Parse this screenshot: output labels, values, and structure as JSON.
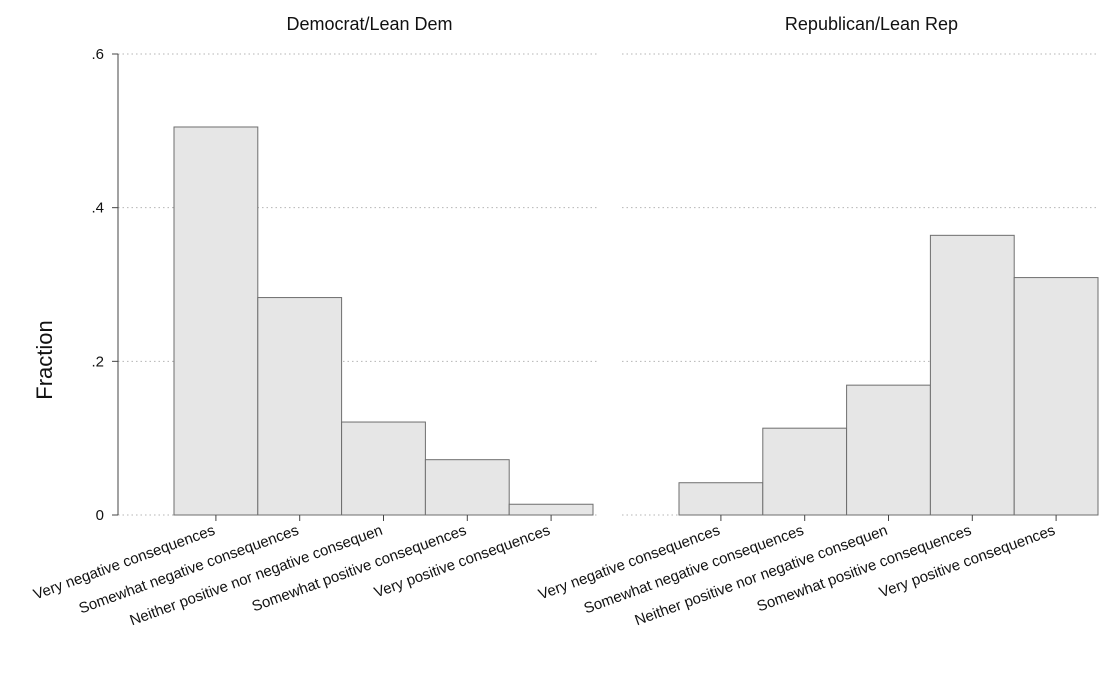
{
  "chart_data": {
    "type": "bar",
    "ylabel": "Fraction",
    "ylim": [
      0,
      0.6
    ],
    "yticks": [
      {
        "value": 0,
        "label": "0"
      },
      {
        "value": 0.2,
        "label": ".2"
      },
      {
        "value": 0.4,
        "label": ".4"
      },
      {
        "value": 0.6,
        "label": ".6"
      }
    ],
    "grid": true,
    "categories": [
      "Very negative consequences",
      "Somewhat negative consequences",
      "Neither positive nor negative consequen",
      "Somewhat positive consequences",
      "Very positive consequences"
    ],
    "panels": [
      {
        "title": "Democrat/Lean Dem",
        "values": [
          0.505,
          0.283,
          0.121,
          0.072,
          0.014
        ]
      },
      {
        "title": "Republican/Lean Rep",
        "values": [
          0.042,
          0.113,
          0.169,
          0.364,
          0.309
        ]
      }
    ]
  }
}
